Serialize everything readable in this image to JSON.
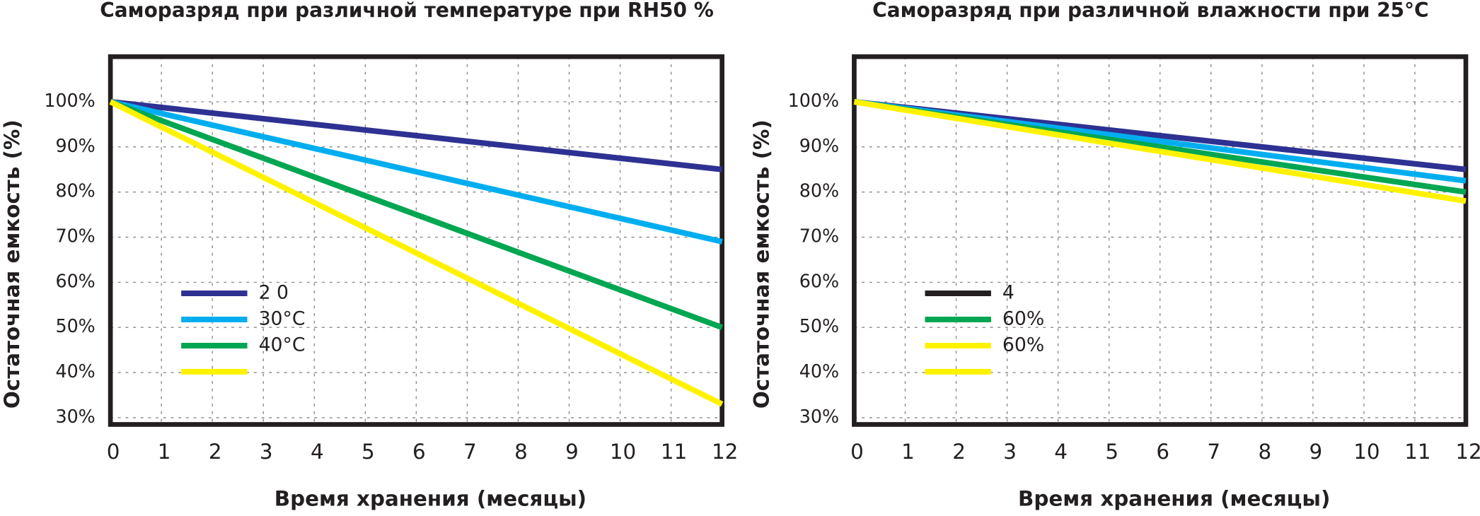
{
  "chart_data": [
    {
      "type": "line",
      "title": "Саморазряд при различной температуре  при RH50 %",
      "x_label": "Время хранения (месяцы)",
      "y_label": "Остаточная емкость  (%)",
      "x": [
        0,
        12
      ],
      "series": [
        {
          "name": "2 0",
          "color": "#2e3192",
          "values": [
            100,
            85
          ]
        },
        {
          "name": "30°C",
          "color": "#00aeef",
          "values": [
            100,
            69
          ]
        },
        {
          "name": "40°C",
          "color": "#00a651",
          "values": [
            100,
            50
          ]
        },
        {
          "color": "#fff200",
          "values": [
            100,
            33
          ]
        }
      ],
      "xlim": [
        0,
        12
      ],
      "xticks": [
        0,
        1,
        2,
        3,
        4,
        5,
        6,
        7,
        8,
        9,
        10,
        11,
        12
      ],
      "ylim": [
        28.5,
        110
      ],
      "yticks": [
        {
          "value": 100,
          "label": "100%"
        },
        {
          "value": 90,
          "label": "90%"
        },
        {
          "value": 80,
          "label": "80%"
        },
        {
          "value": 70,
          "label": "70%"
        },
        {
          "value": 60,
          "label": "60%"
        },
        {
          "value": 50,
          "label": "50%"
        },
        {
          "value": 40,
          "label": "40%"
        },
        {
          "value": 30,
          "label": "30%"
        }
      ],
      "grid": true
    },
    {
      "type": "line",
      "title": "Саморазряд при различной влажности при 25°C",
      "x_label": "Время хранения (месяцы)",
      "y_label": "Остаточная емкость  (%)",
      "x": [
        0,
        12
      ],
      "series": [
        {
          "name": "4",
          "color": "#2e3192",
          "legend_color": "#231f20",
          "values": [
            100,
            85
          ]
        },
        {
          "name": "60%",
          "color": "#00aeef",
          "legend_color": "#00a651",
          "values": [
            100,
            82.5
          ]
        },
        {
          "name": "60%",
          "color": "#00a651",
          "legend_color": "#fff200",
          "values": [
            100,
            80
          ]
        },
        {
          "color": "#fff200",
          "values": [
            100,
            78
          ]
        }
      ],
      "xlim": [
        0,
        12
      ],
      "xticks": [
        0,
        1,
        2,
        3,
        4,
        5,
        6,
        7,
        8,
        9,
        10,
        11,
        12
      ],
      "ylim": [
        28.5,
        110
      ],
      "yticks": [
        {
          "value": 100,
          "label": "100%"
        },
        {
          "value": 90,
          "label": "90%"
        },
        {
          "value": 80,
          "label": "80%"
        },
        {
          "value": 70,
          "label": "70%"
        },
        {
          "value": 60,
          "label": "60%"
        },
        {
          "value": 50,
          "label": "50%"
        },
        {
          "value": 40,
          "label": "40%"
        },
        {
          "value": 30,
          "label": "30%"
        }
      ],
      "grid": true
    }
  ]
}
